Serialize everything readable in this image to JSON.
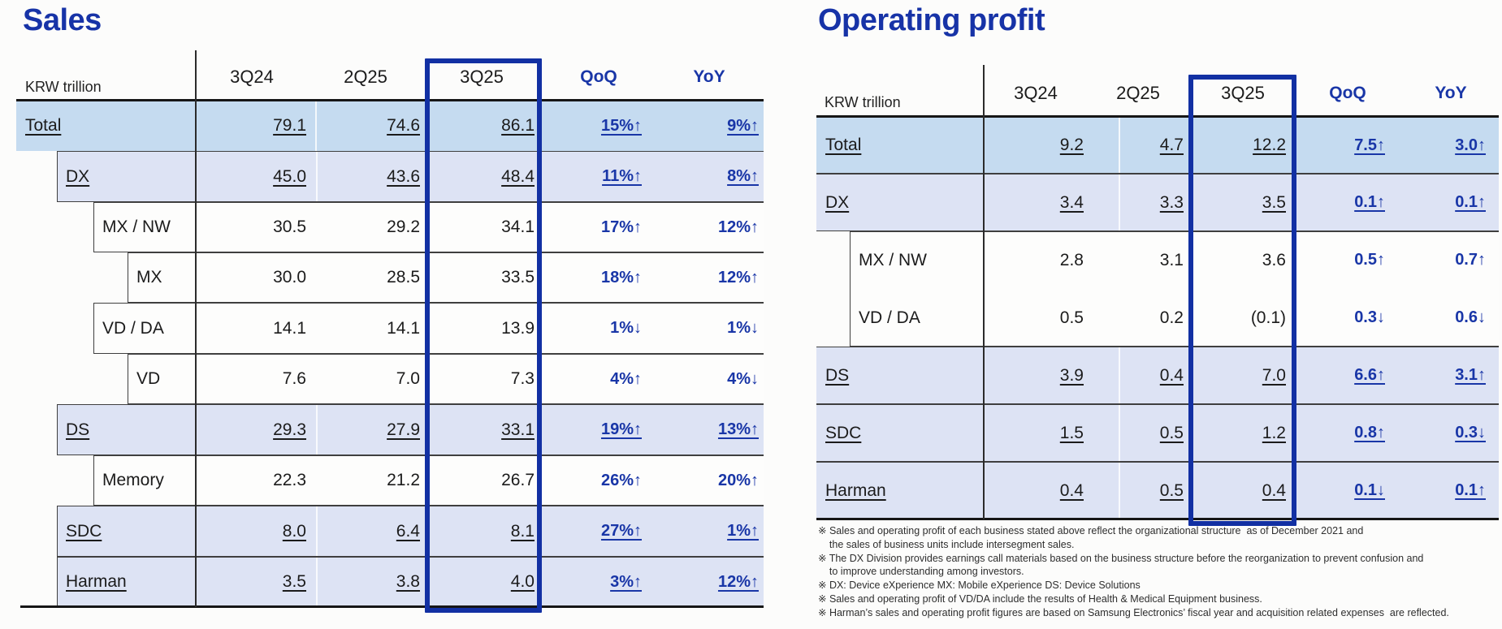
{
  "colors": {
    "accent_blue": "#1733a7",
    "highlight_border": "#1230a3",
    "total_row_bg": "#c5dbf0",
    "group_row_bg": "#dde3f4"
  },
  "sales_table": {
    "title": "Sales",
    "unit_label": "KRW trillion",
    "columns": [
      "3Q24",
      "2Q25",
      "3Q25",
      "QoQ",
      "YoY"
    ],
    "highlighted_column": "3Q25",
    "rows": [
      {
        "label": "Total",
        "values": [
          "79.1",
          "74.6",
          "86.1",
          "15%↑",
          "9%↑"
        ],
        "underlined": true
      },
      {
        "label": "DX",
        "values": [
          "45.0",
          "43.6",
          "48.4",
          "11%↑",
          "8%↑"
        ],
        "underlined": true
      },
      {
        "label": "MX / NW",
        "values": [
          "30.5",
          "29.2",
          "34.1",
          "17%↑",
          "12%↑"
        ],
        "underlined": false
      },
      {
        "label": "MX",
        "values": [
          "30.0",
          "28.5",
          "33.5",
          "18%↑",
          "12%↑"
        ],
        "underlined": false
      },
      {
        "label": "VD / DA",
        "values": [
          "14.1",
          "14.1",
          "13.9",
          "1%↓",
          "1%↓"
        ],
        "underlined": false
      },
      {
        "label": "VD",
        "values": [
          "7.6",
          "7.0",
          "7.3",
          "4%↑",
          "4%↓"
        ],
        "underlined": false
      },
      {
        "label": "DS",
        "values": [
          "29.3",
          "27.9",
          "33.1",
          "19%↑",
          "13%↑"
        ],
        "underlined": true
      },
      {
        "label": "Memory",
        "values": [
          "22.3",
          "21.2",
          "26.7",
          "26%↑",
          "20%↑"
        ],
        "underlined": false
      },
      {
        "label": "SDC",
        "values": [
          "8.0",
          "6.4",
          "8.1",
          "27%↑",
          "1%↑"
        ],
        "underlined": true
      },
      {
        "label": "Harman",
        "values": [
          "3.5",
          "3.8",
          "4.0",
          "3%↑",
          "12%↑"
        ],
        "underlined": true
      }
    ]
  },
  "profit_table": {
    "title": "Operating profit",
    "unit_label": "KRW trillion",
    "columns": [
      "3Q24",
      "2Q25",
      "3Q25",
      "QoQ",
      "YoY"
    ],
    "highlighted_column": "3Q25",
    "rows": [
      {
        "label": "Total",
        "values": [
          "9.2",
          "4.7",
          "12.2",
          "7.5↑",
          "3.0↑"
        ],
        "underlined": true
      },
      {
        "label": "DX",
        "values": [
          "3.4",
          "3.3",
          "3.5",
          "0.1↑",
          "0.1↑"
        ],
        "underlined": true
      },
      {
        "label": "MX / NW",
        "values": [
          "2.8",
          "3.1",
          "3.6",
          "0.5↑",
          "0.7↑"
        ],
        "underlined": false
      },
      {
        "label": "VD / DA",
        "values": [
          "0.5",
          "0.2",
          "(0.1)",
          "0.3↓",
          "0.6↓"
        ],
        "underlined": false
      },
      {
        "label": "DS",
        "values": [
          "3.9",
          "0.4",
          "7.0",
          "6.6↑",
          "3.1↑"
        ],
        "underlined": true
      },
      {
        "label": "SDC",
        "values": [
          "1.5",
          "0.5",
          "1.2",
          "0.8↑",
          "0.3↓"
        ],
        "underlined": true
      },
      {
        "label": "Harman",
        "values": [
          "0.4",
          "0.5",
          "0.4",
          "0.1↓",
          "0.1↑"
        ],
        "underlined": true
      }
    ]
  },
  "footnotes": [
    "※ Sales and operating profit of each business stated above reflect the organizational structure  as of December 2021 and\n    the sales of business units include intersegment sales.",
    "※ The DX Division provides earnings call materials based on the business structure before the reorganization to prevent confusion and\n    to improve understanding among investors.",
    "※ DX: Device eXperience MX: Mobile eXperience DS: Device Solutions",
    "※ Sales and operating profit of VD/DA include the results of Health & Medical Equipment business.",
    "※ Harman’s sales and operating profit figures are based on Samsung Electronics’ fiscal year and acquisition related expenses  are reflected."
  ]
}
